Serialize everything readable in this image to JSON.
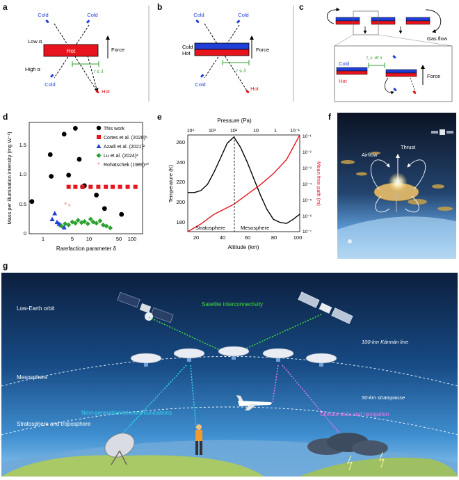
{
  "panels": {
    "a": {
      "letter": "a",
      "cold_top_left": "Cold",
      "cold_top_right": "Cold",
      "cold_bottom_left": "Cold",
      "hot_bottom_right": "Hot",
      "low_alpha": "Low α",
      "high_alpha": "High α",
      "plate_label": "Hot",
      "force": "Force",
      "r_cond": "r ≤ λ"
    },
    "b": {
      "letter": "b",
      "cold_top_left": "Cold",
      "cold_top_right": "Cold",
      "cold_bottom_left": "Cold",
      "hot_bottom_right": "Hot",
      "side_cold": "Cold",
      "side_hot": "Hot",
      "force": "Force",
      "r_cond": "r ≤ λ"
    },
    "c": {
      "letter": "c",
      "gas_flow": "Gas flow",
      "cold": "Cold",
      "hot": "Hot",
      "force": "Force",
      "t_cond": "t_s ≪ λ"
    },
    "d": {
      "letter": "d",
      "ylabel": "Mass per illumination intensity (mg W⁻¹)",
      "xlabel": "Rarefaction parameter δ",
      "yticks": [
        "0",
        "0.5",
        "1.0",
        "1.5"
      ],
      "xticks": [
        "1",
        "5",
        "10",
        "50",
        "100"
      ],
      "legend": [
        "This work",
        "Cortes et al. (2020)⁸",
        "Azadi et al. (2021)²",
        "Lu et al. (2024)³",
        "Rohatschek (1989)⁴⁰"
      ]
    },
    "e": {
      "letter": "e",
      "top_label": "Pressure (Pa)",
      "top_ticks": [
        "10⁴",
        "10³",
        "10²",
        "10",
        "1",
        "10⁻¹"
      ],
      "ylabel_left": "Temperature (K)",
      "ylabel_right": "Mean free path (m)",
      "xlabel": "Altitude (km)",
      "xticks": [
        "20",
        "40",
        "60",
        "80",
        "100"
      ],
      "yticks_left": [
        "180",
        "200",
        "220",
        "240",
        "260"
      ],
      "yticks_right": [
        "10⁻¹",
        "10⁻²",
        "10⁻³",
        "10⁻⁴",
        "10⁻⁵",
        "10⁻⁶",
        "10⁻⁷"
      ],
      "region_left": "Stratosphere",
      "region_right": "Mesosphere"
    },
    "f": {
      "letter": "f",
      "airflow": "Airflow",
      "thrust": "Thrust"
    },
    "g": {
      "letter": "g",
      "leo": "Low-Earth orbit",
      "mesosphere": "Mesosphere",
      "strato": "Stratosphere and troposphere",
      "sat_link": "Satellite interconnectivity",
      "karman": "100-km Kármán line",
      "stratopause": "50-km stratopause",
      "telecom": "Next-generation telecommunications",
      "climate": "Climate data and navigation"
    }
  },
  "chart_data": [
    {
      "type": "scatter",
      "panel": "d",
      "xlabel": "Rarefaction parameter δ",
      "ylabel": "Mass per illumination intensity (mg W⁻¹)",
      "x_scale": "log",
      "xlim": [
        0.7,
        200
      ],
      "ylim": [
        -0.05,
        1.85
      ],
      "series": [
        {
          "name": "This work",
          "color": "#000000",
          "marker": "circle",
          "x": [
            0.8,
            2,
            2.1,
            4,
            5,
            7,
            8.5,
            10,
            11,
            20,
            30,
            70
          ],
          "y": [
            0.5,
            1.3,
            0.93,
            1.65,
            0.95,
            1.75,
            1.22,
            0.75,
            0.77,
            0.61,
            0.38,
            0.28
          ]
        },
        {
          "name": "Cortes et al. (2020)⁸",
          "color": "#e8141d",
          "marker": "square",
          "x": [
            5,
            7,
            10,
            15,
            22,
            32,
            45,
            65,
            95,
            140
          ],
          "y": [
            0.75,
            0.75,
            0.75,
            0.75,
            0.75,
            0.75,
            0.75,
            0.75,
            0.75,
            0.75
          ]
        },
        {
          "name": "Azadi et al. (2021)²",
          "color": "#1f3fd6",
          "marker": "triangle",
          "x": [
            2.2,
            2.5,
            2.8,
            3.1,
            3.4,
            4.0
          ],
          "y": [
            0.2,
            0.3,
            0.15,
            0.12,
            0.1,
            0.06
          ]
        },
        {
          "name": "Lu et al. (2024)³",
          "color": "#2ea02e",
          "marker": "diamond",
          "x": [
            3.5,
            4.2,
            5,
            6,
            7,
            8,
            9.5,
            11,
            13,
            15,
            17,
            20,
            24,
            28,
            33,
            40
          ],
          "y": [
            0.08,
            0.12,
            0.1,
            0.15,
            0.13,
            0.18,
            0.14,
            0.16,
            0.12,
            0.2,
            0.15,
            0.13,
            0.17,
            0.1,
            0.08,
            0.05
          ]
        },
        {
          "name": "Rohatschek (1989)⁴⁰",
          "color": "#f08a8a",
          "marker": "asterisk",
          "x": [
            4.3,
            5.2
          ],
          "y": [
            0.45,
            0.42
          ]
        }
      ]
    },
    {
      "type": "line",
      "panel": "e",
      "xlabel": "Altitude (km)",
      "ylabel": "Temperature (K)",
      "xlim": [
        15,
        100
      ],
      "ylim": [
        178,
        272
      ],
      "series": [
        {
          "name": "Temperature (K)",
          "color": "#000000",
          "x": [
            15,
            20,
            25,
            30,
            35,
            40,
            45,
            50,
            55,
            60,
            65,
            70,
            75,
            80,
            85,
            90,
            95,
            100
          ],
          "y": [
            216,
            216,
            218,
            224,
            236,
            250,
            264,
            270,
            260,
            246,
            230,
            214,
            200,
            190,
            187,
            186,
            190,
            195
          ]
        },
        {
          "name": "Mean free path (m)",
          "color": "#e8141d",
          "axis": "right",
          "y_scale": "log",
          "ylim_right": [
            1e-07,
            0.1
          ],
          "x": [
            15,
            25,
            35,
            50,
            60,
            70,
            80,
            90,
            100
          ],
          "y": [
            1e-07,
            3e-07,
            1.2e-06,
            5e-06,
            2e-05,
            8e-05,
            0.0004,
            0.003,
            0.1
          ]
        }
      ],
      "annotation": {
        "x": 50,
        "label": "10²"
      }
    }
  ]
}
